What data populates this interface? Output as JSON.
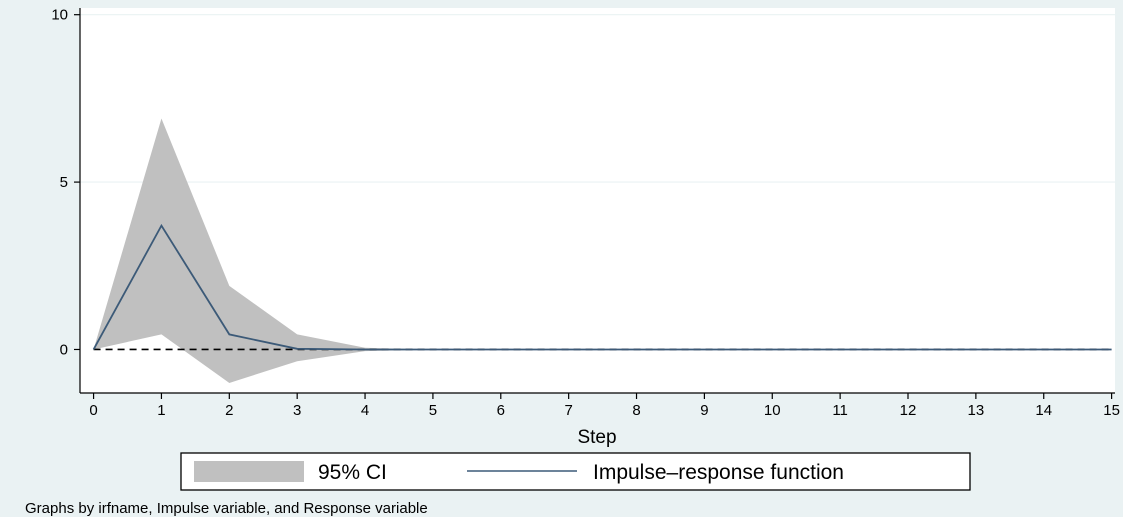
{
  "chart_data": {
    "type": "line",
    "x": [
      0,
      1,
      2,
      3,
      4,
      5,
      6,
      7,
      8,
      9,
      10,
      11,
      12,
      13,
      14,
      15
    ],
    "series": [
      {
        "name": "Impulse–response function",
        "values": [
          0,
          3.7,
          0.45,
          0.02,
          0,
          0,
          0,
          0,
          0,
          0,
          0,
          0,
          0,
          0,
          0,
          0
        ],
        "color": "#3c5a78"
      }
    ],
    "ci": {
      "name": "95% CI",
      "upper": [
        0,
        6.9,
        1.9,
        0.45,
        0.05,
        0,
        0,
        0,
        0,
        0,
        0,
        0,
        0,
        0,
        0,
        0
      ],
      "lower": [
        0,
        0.45,
        -1.0,
        -0.35,
        -0.05,
        0,
        0,
        0,
        0,
        0,
        0,
        0,
        0,
        0,
        0,
        0
      ],
      "color": "#c0c0c0"
    },
    "xlabel": "Step",
    "ylim": [
      -1.3,
      10.2
    ],
    "xlim": [
      -0.2,
      15.05
    ],
    "yticks": [
      0,
      5,
      10
    ],
    "xticks": [
      "0",
      "1",
      "2",
      "3",
      "4",
      "5",
      "6",
      "7",
      "8",
      "9",
      "10",
      "11",
      "12",
      "13",
      "14",
      "15"
    ],
    "reference_line": 0,
    "grid": true,
    "legend": [
      "95% CI",
      "Impulse–response function"
    ],
    "legend_position": "bottom",
    "note": "Graphs by irfname, Impulse variable, and Response variable"
  }
}
